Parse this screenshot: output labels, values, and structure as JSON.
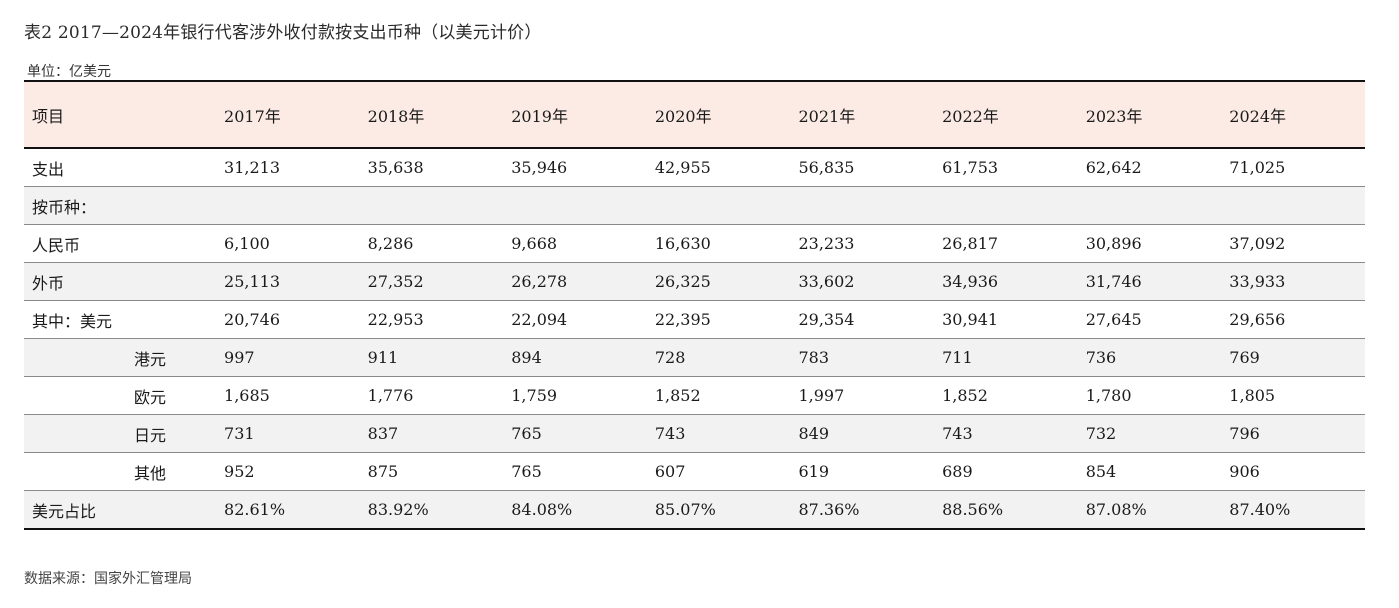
{
  "title": "表2 2017—2024年银行代客涉外收付款按支出币种（以美元计价）",
  "unit": "单位：亿美元",
  "source": "数据来源：国家外汇管理局",
  "table": {
    "header": [
      "项目",
      "2017年",
      "2018年",
      "2019年",
      "2020年",
      "2021年",
      "2022年",
      "2023年",
      "2024年"
    ],
    "rows": [
      {
        "label": "支出",
        "values": [
          "31,213",
          "35,638",
          "35,946",
          "42,955",
          "56,835",
          "61,753",
          "62,642",
          "71,025"
        ]
      },
      {
        "label": "按币种：",
        "values": [
          "",
          "",
          "",
          "",
          "",
          "",
          "",
          ""
        ]
      },
      {
        "label": "人民币",
        "values": [
          "6,100",
          "8,286",
          "9,668",
          "16,630",
          "23,233",
          "26,817",
          "30,896",
          "37,092"
        ]
      },
      {
        "label": "外币",
        "values": [
          "25,113",
          "27,352",
          "26,278",
          "26,325",
          "33,602",
          "34,936",
          "31,746",
          "33,933"
        ]
      },
      {
        "label": "其中：美元",
        "values": [
          "20,746",
          "22,953",
          "22,094",
          "22,395",
          "29,354",
          "30,941",
          "27,645",
          "29,656"
        ]
      },
      {
        "label": "港元",
        "values": [
          "997",
          "911",
          "894",
          "728",
          "783",
          "711",
          "736",
          "769"
        ]
      },
      {
        "label": "欧元",
        "values": [
          "1,685",
          "1,776",
          "1,759",
          "1,852",
          "1,997",
          "1,852",
          "1,780",
          "1,805"
        ]
      },
      {
        "label": "日元",
        "values": [
          "731",
          "837",
          "765",
          "743",
          "849",
          "743",
          "732",
          "796"
        ]
      },
      {
        "label": "其他",
        "values": [
          "952",
          "875",
          "765",
          "607",
          "619",
          "689",
          "854",
          "906"
        ]
      },
      {
        "label": "美元占比",
        "values": [
          "82.61%",
          "83.92%",
          "84.08%",
          "85.07%",
          "87.36%",
          "88.56%",
          "87.08%",
          "87.40%"
        ]
      }
    ]
  },
  "colors": {
    "header_bg": "#fbebe4",
    "shaded_row_bg": "#f2f2f2",
    "rule": "#111111"
  }
}
